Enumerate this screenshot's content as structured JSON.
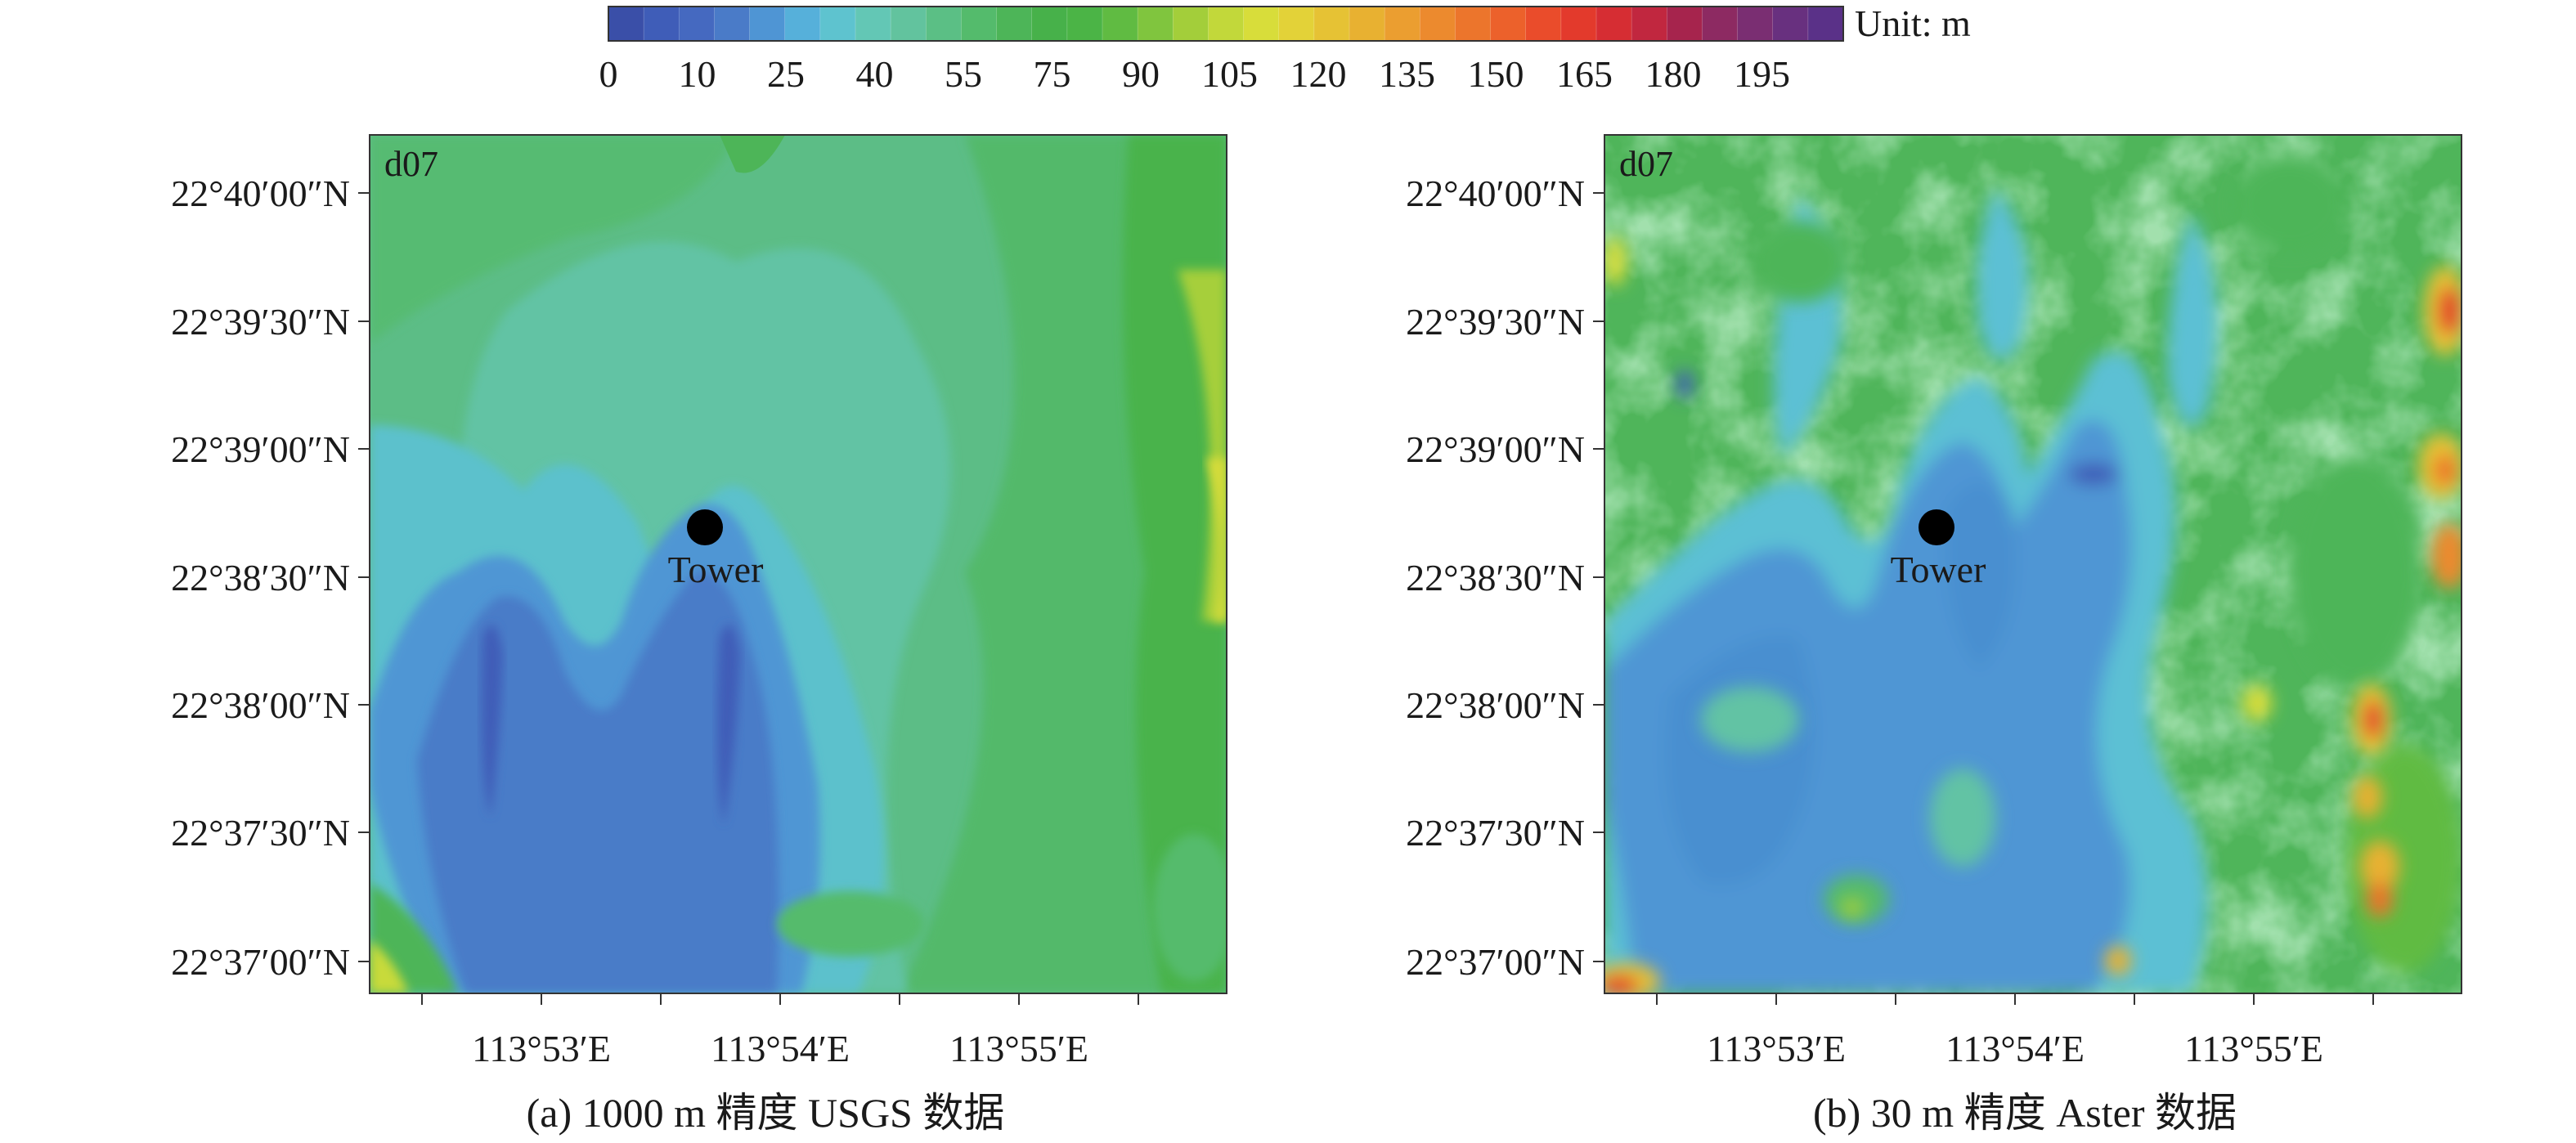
{
  "colorbar": {
    "unit_label": "Unit: m",
    "colors": [
      "#3a4fa8",
      "#3f5db8",
      "#4569c0",
      "#4a7bc8",
      "#4f95d4",
      "#56b0da",
      "#5ec3cf",
      "#63c7b5",
      "#62c39e",
      "#5bbf85",
      "#54bb6c",
      "#4db558",
      "#47b14a",
      "#4bb446",
      "#60bb42",
      "#80c53e",
      "#a3ce3a",
      "#c2d83a",
      "#d8dd3a",
      "#e3d238",
      "#e6c234",
      "#e8b131",
      "#eb9e30",
      "#ec8a2e",
      "#ec752c",
      "#ec612b",
      "#ea4c2b",
      "#e33a2c",
      "#d62d33",
      "#c1273f",
      "#a6244d",
      "#8d2a62",
      "#7a2e72",
      "#68307f",
      "#5a3188"
    ],
    "tick_labels": [
      "0",
      "10",
      "25",
      "40",
      "55",
      "75",
      "90",
      "105",
      "120",
      "135",
      "150",
      "165",
      "180",
      "195"
    ]
  },
  "panels": [
    {
      "domain_label": "d07",
      "marker_label": "Tower",
      "lat_labels": [
        "22°40′00″N",
        "22°39′30″N",
        "22°39′00″N",
        "22°38′30″N",
        "22°38′00″N",
        "22°37′30″N",
        "22°37′00″N"
      ],
      "lon_labels": [
        "113°53′E",
        "113°54′E",
        "113°55′E"
      ],
      "caption": "(a) 1000 m 精度 USGS 数据"
    },
    {
      "domain_label": "d07",
      "marker_label": "Tower",
      "lat_labels": [
        "22°40′00″N",
        "22°39′30″N",
        "22°39′00″N",
        "22°38′30″N",
        "22°38′00″N",
        "22°37′30″N",
        "22°37′00″N"
      ],
      "lon_labels": [
        "113°53′E",
        "113°54′E",
        "113°55′E"
      ],
      "caption": "(b) 30 m 精度 Aster 数据"
    }
  ]
}
